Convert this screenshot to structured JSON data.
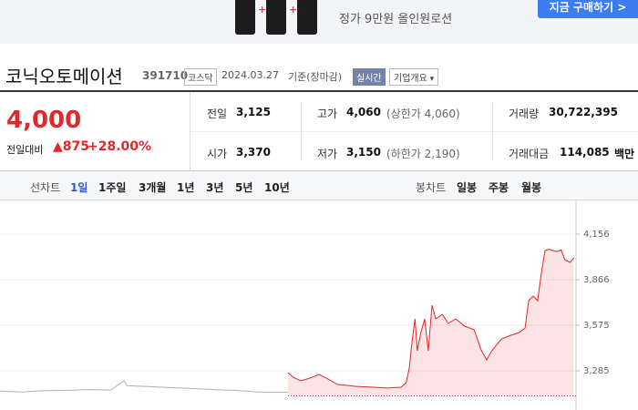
{
  "ad": {
    "subtitle": "정가 9만원 올인원로션",
    "button": "지금 구매하기"
  },
  "stock": {
    "name": "코닉오토메이션",
    "code": "391710",
    "market": "코스닥",
    "date": "2024.03.27",
    "basis": "기준(장마감)",
    "realtime": "실시간",
    "overview": "기업개요"
  },
  "price": {
    "current": "4,000",
    "change_label": "전일대비",
    "change": "875",
    "rate": "+28.00%"
  },
  "summary": {
    "rows": [
      [
        {
          "label": "전일",
          "value": "3,125"
        },
        {
          "label": "고가",
          "value": "4,060",
          "note": "(상한가 4,060)"
        },
        {
          "label": "거래량",
          "value": "30,722,395"
        }
      ],
      [
        {
          "label": "시가",
          "value": "3,370"
        },
        {
          "label": "저가",
          "value": "3,150",
          "note": "(하한가 2,190)"
        },
        {
          "label": "거래대금",
          "value": "114,085",
          "unit": "백만"
        }
      ]
    ]
  },
  "tabs": {
    "line_label": "선차트",
    "line": [
      "1일",
      "1주일",
      "3개월",
      "1년",
      "3년",
      "5년",
      "10년"
    ],
    "candle_label": "봉차트",
    "candle": [
      "일봉",
      "주봉",
      "월봉"
    ]
  },
  "chart_data": {
    "type": "line",
    "ylim": [
      3035,
      4371
    ],
    "xlim": [
      0,
      780
    ],
    "yticks": [
      {
        "value": 4156,
        "label": "4,156"
      },
      {
        "value": 3866,
        "label": "3,866"
      },
      {
        "value": 3575,
        "label": "3,575"
      },
      {
        "value": 3285,
        "label": "3,285"
      }
    ],
    "grid": true,
    "baseline": 3125,
    "series": [
      {
        "color": "#b0b0b0",
        "fill": false,
        "x": [
          0,
          30,
          60,
          90,
          120,
          150,
          168,
          172,
          200,
          230,
          260,
          290,
          320,
          350,
          375,
          390
        ],
        "values": [
          3155,
          3150,
          3158,
          3160,
          3165,
          3162,
          3221,
          3190,
          3185,
          3178,
          3172,
          3165,
          3160,
          3150,
          3148,
          3150
        ]
      },
      {
        "color": "#e4262b",
        "fill": true,
        "x": [
          390,
          397,
          407,
          420,
          432,
          444,
          457,
          481,
          506,
          525,
          543,
          550,
          554,
          558,
          562,
          565,
          570,
          575,
          580,
          585,
          590,
          599,
          607,
          617,
          629,
          642,
          652,
          659,
          666,
          679,
          691,
          703,
          711,
          716,
          722,
          728,
          733,
          738,
          743,
          753,
          760,
          765,
          772,
          777
        ],
        "values": [
          3273,
          3244,
          3221,
          3239,
          3262,
          3233,
          3198,
          3186,
          3180,
          3175,
          3180,
          3209,
          3297,
          3471,
          3616,
          3413,
          3529,
          3616,
          3413,
          3703,
          3616,
          3645,
          3587,
          3616,
          3570,
          3546,
          3413,
          3355,
          3413,
          3488,
          3511,
          3529,
          3558,
          3732,
          3761,
          3732,
          3906,
          4051,
          4060,
          4045,
          4055,
          3993,
          3976,
          4005
        ]
      }
    ]
  }
}
